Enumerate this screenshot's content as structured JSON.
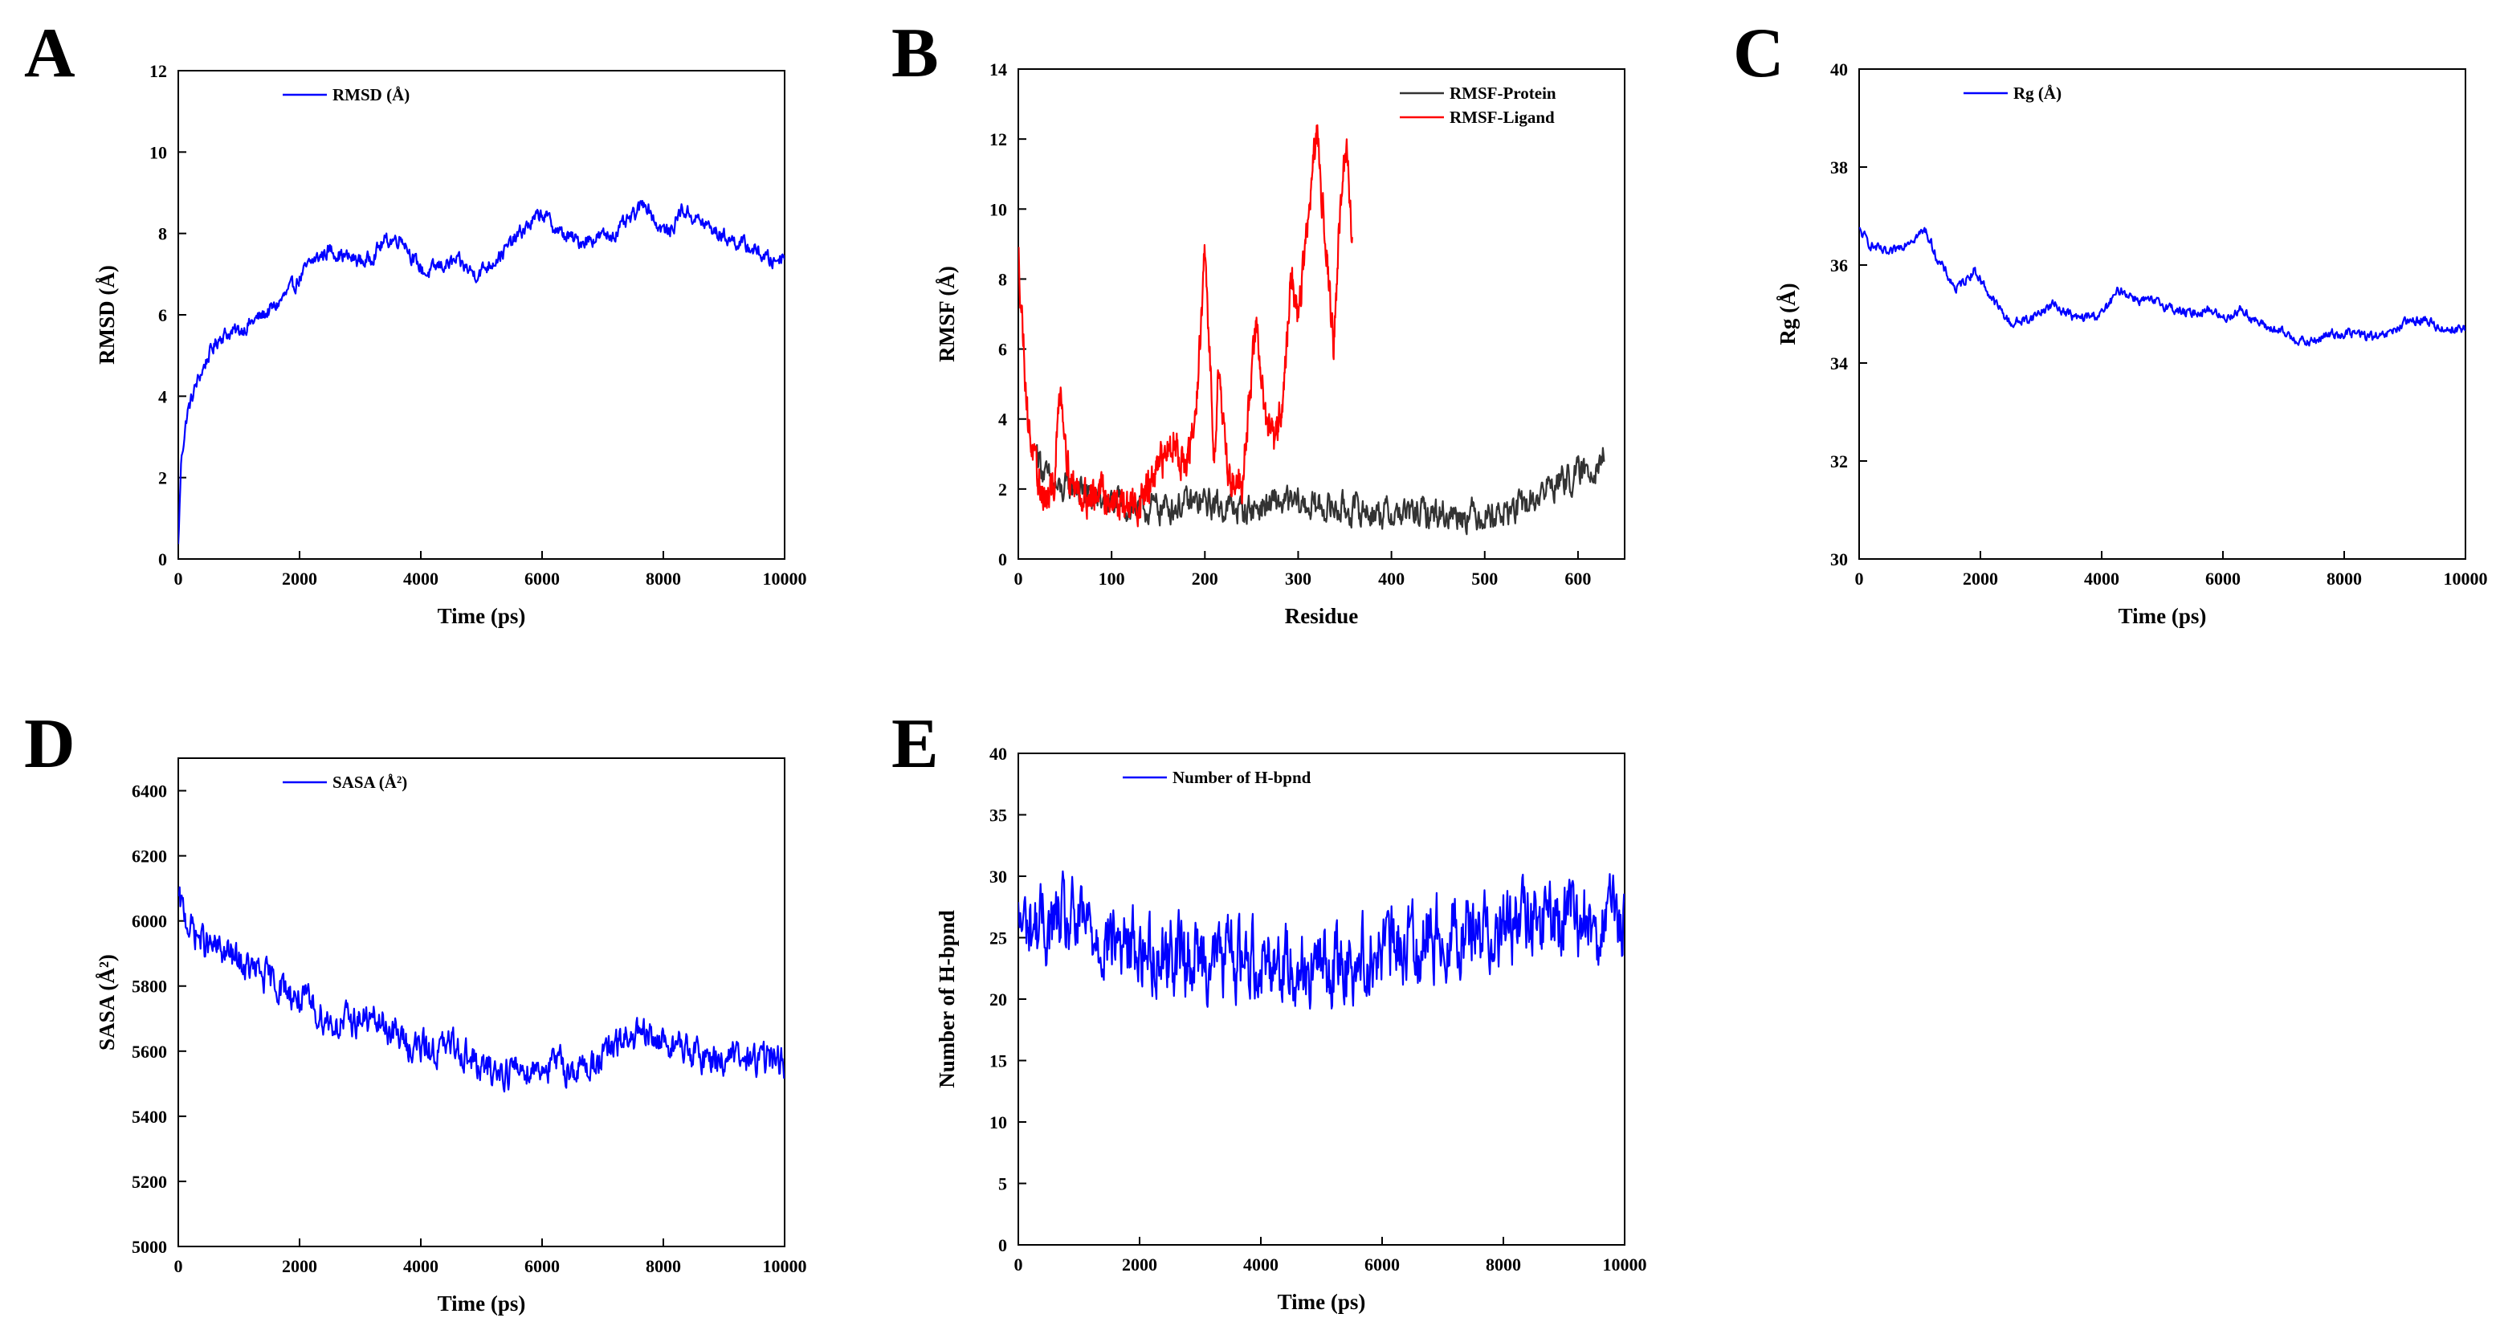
{
  "chart_data": [
    {
      "type": "line",
      "panel_letter": "A",
      "xlabel": "Time (ps)",
      "ylabel": "RMSD (Å)",
      "xlim": [
        0,
        10000
      ],
      "ylim": [
        0,
        12
      ],
      "xticks": [
        0,
        2000,
        4000,
        6000,
        8000,
        10000
      ],
      "xtick_labels": [
        "0",
        "2000",
        "4000",
        "6000",
        "8000",
        "10000"
      ],
      "yticks": [
        0,
        2,
        4,
        6,
        8,
        10,
        12
      ],
      "ytick_labels": [
        "0",
        "2",
        "4",
        "6",
        "8",
        "10",
        "12"
      ],
      "legend_position": "top-left",
      "series": [
        {
          "name": "RMSD (Å)",
          "color": "#0000ff",
          "noise": 0.15,
          "x": [
            0,
            50,
            150,
            300,
            500,
            700,
            1000,
            1300,
            1600,
            1900,
            2200,
            2500,
            2800,
            3100,
            3400,
            3700,
            3900,
            4100,
            4300,
            4600,
            4900,
            5100,
            5400,
            5700,
            6000,
            6300,
            6600,
            6900,
            7200,
            7500,
            7700,
            7900,
            8100,
            8300,
            8600,
            8900,
            9200,
            9500,
            9800,
            10000
          ],
          "y": [
            0.3,
            2.5,
            3.6,
            4.3,
            5.0,
            5.5,
            5.6,
            5.9,
            6.2,
            6.7,
            7.3,
            7.6,
            7.4,
            7.3,
            7.8,
            7.9,
            7.3,
            7.0,
            7.2,
            7.3,
            7.0,
            7.2,
            7.6,
            8.1,
            8.5,
            8.0,
            7.8,
            7.9,
            8.0,
            8.4,
            8.8,
            8.2,
            8.0,
            8.6,
            8.3,
            8.0,
            7.8,
            7.6,
            7.3,
            7.5
          ]
        }
      ]
    },
    {
      "type": "line",
      "panel_letter": "B",
      "xlabel": "Residue",
      "ylabel": "RMSF (Å)",
      "xlim": [
        0,
        650
      ],
      "ylim": [
        0,
        14
      ],
      "xticks": [
        0,
        100,
        200,
        300,
        400,
        500,
        600
      ],
      "xtick_labels": [
        "0",
        "100",
        "200",
        "300",
        "400",
        "500",
        "600"
      ],
      "yticks": [
        0,
        2,
        4,
        6,
        8,
        10,
        12,
        14
      ],
      "ytick_labels": [
        "0",
        "2",
        "4",
        "6",
        "8",
        "10",
        "12",
        "14"
      ],
      "legend_position": "top-right",
      "series": [
        {
          "name": "RMSF-Protein",
          "color": "#333333",
          "noise": 0.35,
          "x": [
            20,
            30,
            45,
            60,
            80,
            100,
            130,
            160,
            200,
            240,
            280,
            320,
            360,
            400,
            440,
            480,
            520,
            550,
            570,
            590,
            610,
            628
          ],
          "y": [
            3.1,
            2.3,
            1.9,
            2.1,
            1.7,
            1.6,
            1.4,
            1.5,
            1.6,
            1.4,
            1.6,
            1.5,
            1.4,
            1.3,
            1.3,
            1.3,
            1.3,
            1.6,
            2.1,
            2.3,
            2.5,
            3.0
          ]
        },
        {
          "name": "RMSF-Ligand",
          "color": "#ff0000",
          "noise": 0.4,
          "x": [
            0,
            5,
            10,
            20,
            30,
            38,
            45,
            55,
            70,
            90,
            110,
            130,
            150,
            165,
            180,
            190,
            200,
            210,
            215,
            225,
            240,
            255,
            265,
            275,
            285,
            292,
            300,
            310,
            320,
            330,
            338,
            345,
            352,
            358
          ],
          "y": [
            8.7,
            6.5,
            4.0,
            2.3,
            1.6,
            2.0,
            5.0,
            2.3,
            1.8,
            1.9,
            1.5,
            1.6,
            2.5,
            3.5,
            2.5,
            4.0,
            8.7,
            3.0,
            5.6,
            2.3,
            2.2,
            6.8,
            4.0,
            3.2,
            5.0,
            8.0,
            7.0,
            9.5,
            12.2,
            9.0,
            6.0,
            10.0,
            11.7,
            9.2
          ]
        }
      ]
    },
    {
      "type": "line",
      "panel_letter": "C",
      "xlabel": "Time (ps)",
      "ylabel": "Rg (Å)",
      "xlim": [
        0,
        10000
      ],
      "ylim": [
        30,
        40
      ],
      "xticks": [
        0,
        2000,
        4000,
        6000,
        8000,
        10000
      ],
      "xtick_labels": [
        "0",
        "2000",
        "4000",
        "6000",
        "8000",
        "10000"
      ],
      "yticks": [
        30,
        32,
        34,
        36,
        38,
        40
      ],
      "ytick_labels": [
        "30",
        "32",
        "34",
        "36",
        "38",
        "40"
      ],
      "legend_position": "top-left",
      "series": [
        {
          "name": "Rg (Å)",
          "color": "#0000ff",
          "noise": 0.08,
          "x": [
            0,
            200,
            500,
            800,
            1100,
            1300,
            1600,
            1900,
            2200,
            2500,
            2800,
            3200,
            3600,
            4000,
            4300,
            4600,
            5000,
            5400,
            5800,
            6000,
            6300,
            6600,
            7000,
            7400,
            7800,
            8200,
            8600,
            9000,
            9300,
            9600,
            10000
          ],
          "y": [
            36.7,
            36.4,
            36.2,
            36.5,
            36.7,
            36.1,
            35.5,
            35.9,
            35.3,
            34.8,
            34.9,
            35.2,
            34.9,
            35.0,
            35.5,
            35.3,
            35.2,
            35.0,
            35.1,
            34.9,
            35.1,
            34.8,
            34.6,
            34.4,
            34.6,
            34.6,
            34.5,
            34.8,
            34.9,
            34.7,
            34.7
          ]
        }
      ]
    },
    {
      "type": "line",
      "panel_letter": "D",
      "xlabel": "Time (ps)",
      "ylabel": "SASA (Å²)",
      "xlim": [
        0,
        10000
      ],
      "ylim": [
        5000,
        6500
      ],
      "xticks": [
        0,
        2000,
        4000,
        6000,
        8000,
        10000
      ],
      "xtick_labels": [
        "0",
        "2000",
        "4000",
        "6000",
        "8000",
        "10000"
      ],
      "yticks": [
        5000,
        5200,
        5400,
        5600,
        5800,
        6000,
        6200,
        6400
      ],
      "ytick_labels": [
        "5000",
        "5200",
        "5400",
        "5600",
        "5800",
        "6000",
        "6200",
        "6400"
      ],
      "legend_position": "top-left",
      "series": [
        {
          "name": "SASA (Å²)",
          "color": "#0000ff",
          "noise": 40,
          "x": [
            0,
            200,
            500,
            800,
            1100,
            1400,
            1700,
            2000,
            2300,
            2600,
            3000,
            3400,
            3800,
            4200,
            4600,
            5000,
            5400,
            5800,
            6200,
            6600,
            7000,
            7400,
            7800,
            8200,
            8600,
            9000,
            9400,
            9800,
            10000
          ],
          "y": [
            6060,
            5980,
            5920,
            5900,
            5860,
            5830,
            5800,
            5760,
            5720,
            5680,
            5700,
            5680,
            5620,
            5600,
            5620,
            5540,
            5540,
            5550,
            5560,
            5540,
            5580,
            5640,
            5640,
            5620,
            5580,
            5580,
            5570,
            5580,
            5560
          ]
        }
      ]
    },
    {
      "type": "line",
      "panel_letter": "E",
      "xlabel": "Time (ps)",
      "ylabel": "Number of H-bpnd",
      "xlim": [
        0,
        10000
      ],
      "ylim": [
        0,
        40
      ],
      "xticks": [
        0,
        2000,
        4000,
        6000,
        8000,
        10000
      ],
      "xtick_labels": [
        "0",
        "2000",
        "4000",
        "6000",
        "8000",
        "10000"
      ],
      "yticks": [
        0,
        5,
        10,
        15,
        20,
        25,
        30,
        35,
        40
      ],
      "ytick_labels": [
        "0",
        "5",
        "10",
        "15",
        "20",
        "25",
        "30",
        "35",
        "40"
      ],
      "legend_position": "top-left",
      "series": [
        {
          "name": "Number of H-bpnd",
          "color": "#0000ff",
          "noise": 2.6,
          "x": [
            0,
            1000,
            2000,
            3000,
            4000,
            5000,
            6000,
            7000,
            8000,
            9000,
            10000
          ],
          "y": [
            26,
            26,
            24,
            23.5,
            23.5,
            22.5,
            24,
            25.5,
            26,
            26.5,
            26
          ]
        }
      ]
    }
  ]
}
